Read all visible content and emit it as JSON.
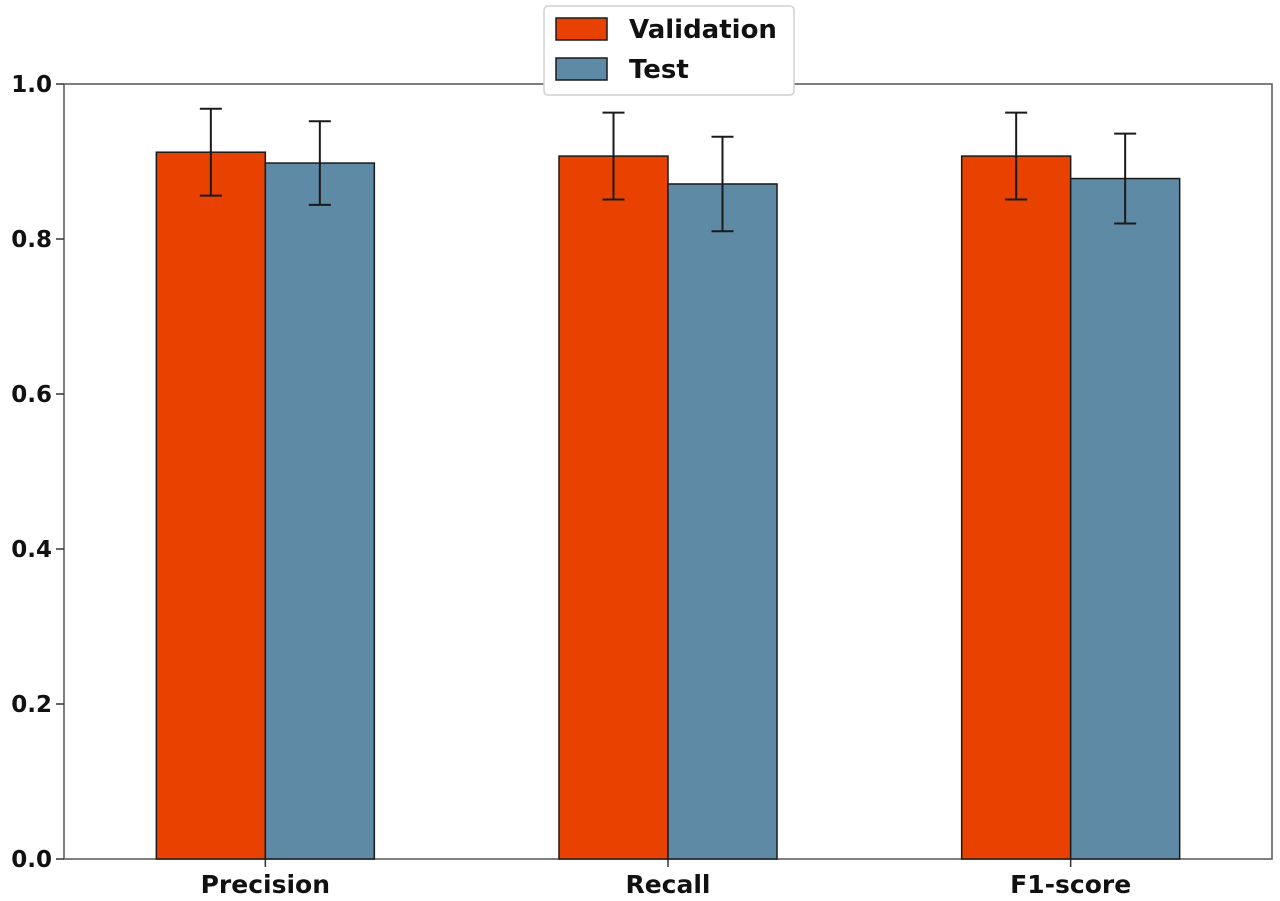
{
  "chart_data": {
    "type": "bar",
    "title": "",
    "xlabel": "",
    "ylabel": "",
    "categories": [
      "Precision",
      "Recall",
      "F1-score"
    ],
    "series": [
      {
        "name": "Validation",
        "color": "#e84100",
        "values": [
          0.912,
          0.907,
          0.907
        ],
        "errors": [
          0.056,
          0.056,
          0.056
        ]
      },
      {
        "name": "Test",
        "color": "#5f8aa6",
        "values": [
          0.898,
          0.871,
          0.878
        ],
        "errors": [
          0.054,
          0.061,
          0.058
        ]
      }
    ],
    "ylim": [
      0.0,
      1.0
    ],
    "yticks": [
      "0.0",
      "0.2",
      "0.4",
      "0.6",
      "0.8",
      "1.0"
    ],
    "grid": false,
    "legend_position": "top-center"
  }
}
